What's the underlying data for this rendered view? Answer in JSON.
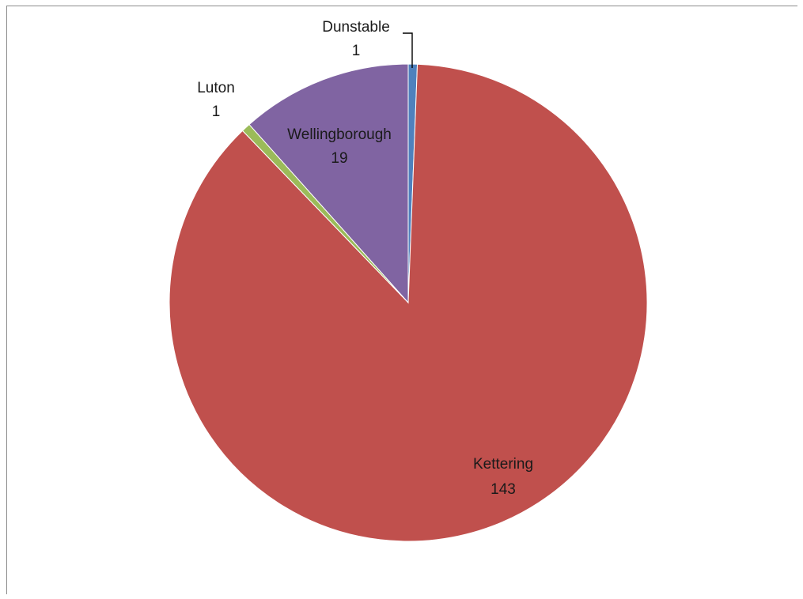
{
  "chart_data": {
    "type": "pie",
    "slices": [
      {
        "label": "Dunstable",
        "value": 1,
        "color": "#4f81bd"
      },
      {
        "label": "Kettering",
        "value": 143,
        "color": "#c0504d"
      },
      {
        "label": "Luton",
        "value": 1,
        "color": "#9bbb59"
      },
      {
        "label": "Wellingborough",
        "value": 19,
        "color": "#8064a2"
      }
    ],
    "data_labels": "category name and value",
    "legend": "none"
  }
}
